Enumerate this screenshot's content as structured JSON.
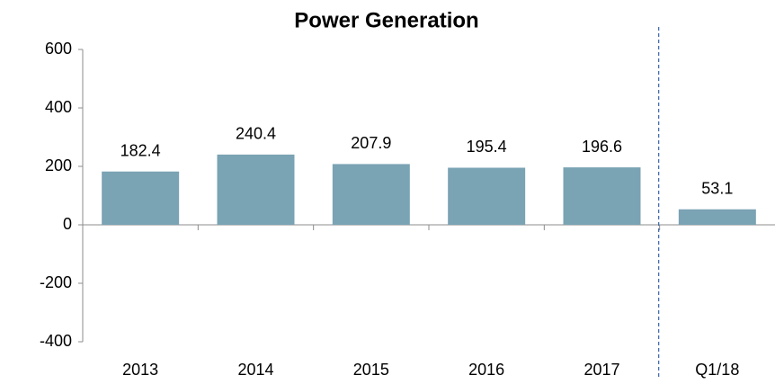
{
  "chart_data": {
    "type": "bar",
    "title": "Power Generation",
    "categories": [
      "2013",
      "2014",
      "2015",
      "2016",
      "2017",
      "Q1/18"
    ],
    "values": [
      182.4,
      240.4,
      207.9,
      195.4,
      196.6,
      53.1
    ],
    "color": "#7aa3b4",
    "ylim": [
      -400,
      600
    ],
    "yticks": [
      -400,
      -200,
      0,
      200,
      400,
      600
    ],
    "grid": false
  }
}
